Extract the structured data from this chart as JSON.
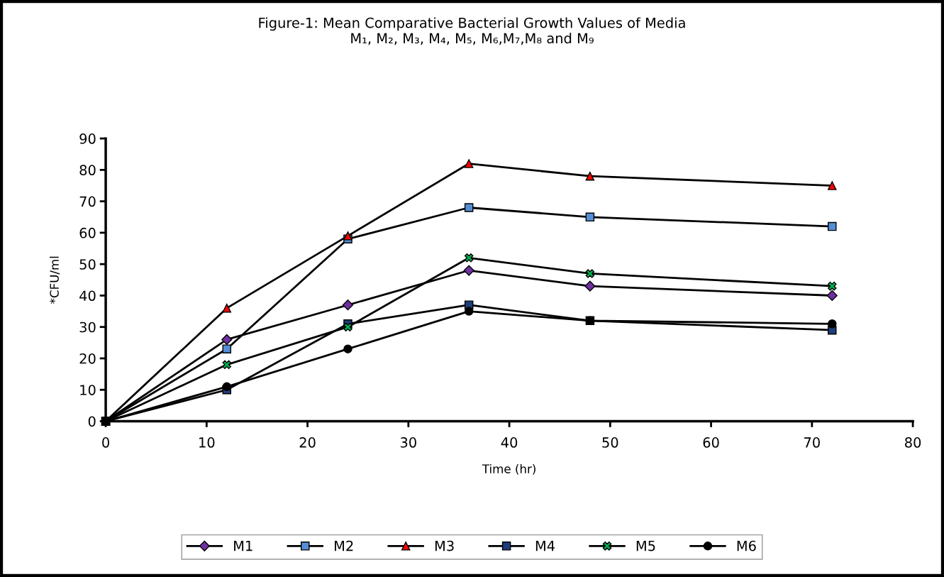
{
  "chart_data": {
    "type": "line",
    "title": "Figure-1: Mean Comparative Bacterial Growth Values of Media\nM₁, M₂, M₃, M₄, M₅, M₆,M₇,M₈ and M₉",
    "xlabel": "Time (hr)",
    "ylabel": "*CFU/ml",
    "x": [
      0,
      12,
      24,
      36,
      48,
      72
    ],
    "series": [
      {
        "name": "M1",
        "color": "#7030a0",
        "marker": "diamond",
        "values": [
          0,
          26,
          37,
          48,
          43,
          40
        ]
      },
      {
        "name": "M2",
        "color": "#558ed5",
        "marker": "square",
        "values": [
          0,
          23,
          58,
          68,
          65,
          62
        ]
      },
      {
        "name": "M3",
        "color": "#ff0000",
        "marker": "triangle",
        "values": [
          0,
          36,
          59,
          82,
          78,
          75
        ]
      },
      {
        "name": "M4",
        "color": "#1f3d7a",
        "marker": "square",
        "values": [
          0,
          10,
          31,
          37,
          32,
          29
        ]
      },
      {
        "name": "M5",
        "color": "#00b050",
        "marker": "cross",
        "values": [
          0,
          18,
          30,
          52,
          47,
          43
        ]
      },
      {
        "name": "M6",
        "color": "#000000",
        "marker": "circle",
        "values": [
          0,
          11,
          23,
          35,
          32,
          31
        ]
      }
    ],
    "xlim": [
      0,
      80
    ],
    "xticks": [
      0,
      10,
      20,
      30,
      40,
      50,
      60,
      70,
      80
    ],
    "ylim": [
      0,
      90
    ],
    "yticks": [
      0,
      10,
      20,
      30,
      40,
      50,
      60,
      70,
      80,
      90
    ],
    "grid": false,
    "legend": "bottom",
    "line_style": "solid"
  }
}
